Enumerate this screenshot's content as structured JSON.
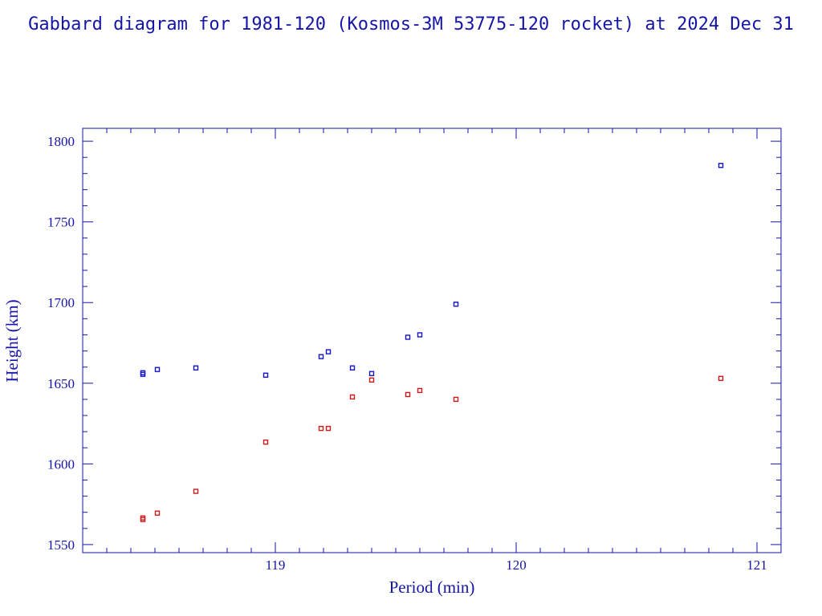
{
  "chart_data": {
    "type": "scatter",
    "title": "Gabbard diagram for 1981-120 (Kosmos-3M 53775-120 rocket) at 2024 Dec 31",
    "xlabel": "Period (min)",
    "ylabel": "Height (km)",
    "xlim": [
      118.2,
      121.1
    ],
    "ylim": [
      1545,
      1808
    ],
    "x_ticks": [
      "119",
      "120",
      "121"
    ],
    "y_ticks": [
      "1550",
      "1600",
      "1650",
      "1700",
      "1750",
      "1800"
    ],
    "grid": false,
    "series": [
      {
        "color": "#1515c8",
        "points": [
          [
            118.45,
            1656.5
          ],
          [
            118.45,
            1655.5
          ],
          [
            118.51,
            1658.5
          ],
          [
            118.67,
            1659.5
          ],
          [
            118.96,
            1655.0
          ],
          [
            119.19,
            1666.5
          ],
          [
            119.22,
            1669.5
          ],
          [
            119.32,
            1659.5
          ],
          [
            119.4,
            1656.0
          ],
          [
            119.55,
            1678.5
          ],
          [
            119.6,
            1680.0
          ],
          [
            119.75,
            1699.0
          ],
          [
            120.85,
            1785.0
          ]
        ]
      },
      {
        "color": "#d01a1a",
        "points": [
          [
            118.45,
            1566.5
          ],
          [
            118.45,
            1565.5
          ],
          [
            118.51,
            1569.5
          ],
          [
            118.67,
            1583.0
          ],
          [
            118.96,
            1613.5
          ],
          [
            119.19,
            1622.0
          ],
          [
            119.22,
            1622.0
          ],
          [
            119.32,
            1641.5
          ],
          [
            119.4,
            1652.0
          ],
          [
            119.55,
            1643.0
          ],
          [
            119.6,
            1645.5
          ],
          [
            119.75,
            1640.0
          ],
          [
            120.85,
            1653.0
          ]
        ]
      }
    ]
  }
}
